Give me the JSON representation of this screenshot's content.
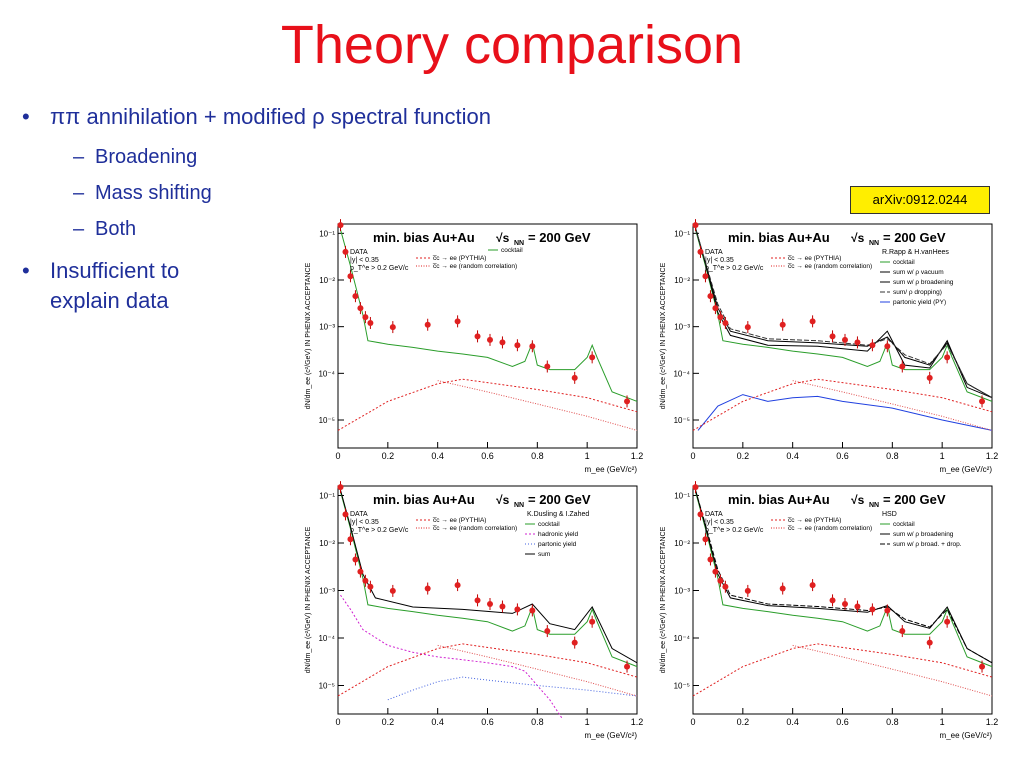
{
  "title": "Theory comparison",
  "bullets": [
    {
      "text": "ππ annihilation + modified ρ spectral function",
      "subitems": [
        "Broadening",
        "Mass shifting",
        "Both"
      ]
    },
    {
      "text_lines": [
        "Insufficient to",
        "explain data"
      ]
    }
  ],
  "arxiv_label": "arXiv:0912.0244",
  "colors": {
    "title": "#e8101a",
    "text": "#1f2f9a",
    "arxiv_bg": "#ffee00"
  },
  "common_plot": {
    "header": "min. bias Au+Au",
    "energy": "= 200 GeV",
    "ylabel": "dN/dm_ee (c²/GeV) IN PHENIX ACCEPTANCE",
    "xlabel": "m_ee (GeV/c²)",
    "x_ticks": [
      "0",
      "0.2",
      "0.4",
      "0.6",
      "0.8",
      "1",
      "1.2"
    ],
    "y_ticks": [
      "10⁻¹",
      "10⁻²",
      "10⁻³",
      "10⁻⁴",
      "10⁻⁵"
    ],
    "cuts": [
      "DATA",
      "|y| < 0.35",
      "p_T^e > 0.2 GeV/c"
    ],
    "charm_labels": [
      "c̅c → ee (PYTHIA)",
      "c̅c → ee (random correlation)"
    ]
  },
  "chart_data": [
    {
      "type": "scatter",
      "title": "min. bias Au+Au = 200 GeV",
      "xlabel": "m_ee (GeV/c²)",
      "ylabel": "dN/dm_ee (c²/GeV) IN PHENIX ACCEPTANCE",
      "xlim": [
        0,
        1.2
      ],
      "ylim_log10": [
        -5.6,
        -0.8
      ],
      "legend": [
        "DATA",
        "cocktail",
        "c̅c → ee (PYTHIA)",
        "c̅c → ee (random correlation)"
      ],
      "author": "",
      "series": [
        {
          "name": "DATA",
          "x": [
            0.01,
            0.03,
            0.05,
            0.07,
            0.09,
            0.11,
            0.13,
            0.22,
            0.36,
            0.48,
            0.56,
            0.61,
            0.66,
            0.72,
            0.78,
            0.84,
            0.95,
            1.02,
            1.16
          ],
          "y": [
            0.15,
            0.04,
            0.012,
            0.0045,
            0.0025,
            0.0016,
            0.0012,
            0.00098,
            0.0011,
            0.0013,
            0.00062,
            0.00052,
            0.00046,
            0.0004,
            0.00038,
            0.00014,
            8e-05,
            0.00022,
            2.5e-05
          ]
        },
        {
          "name": "cocktail",
          "x": [
            0.01,
            0.05,
            0.1,
            0.12,
            0.2,
            0.3,
            0.4,
            0.5,
            0.6,
            0.7,
            0.75,
            0.78,
            0.8,
            0.85,
            0.95,
            1.0,
            1.02,
            1.04,
            1.1,
            1.2
          ],
          "y": [
            0.12,
            0.02,
            0.0018,
            0.0005,
            0.00042,
            0.00036,
            0.0003,
            0.00026,
            0.00022,
            0.00014,
            0.00018,
            0.00045,
            0.00015,
            0.00012,
            0.00012,
            0.00022,
            0.0004,
            0.00022,
            4e-05,
            2.5e-05
          ]
        },
        {
          "name": "c̅c → ee (PYTHIA)",
          "x": [
            0,
            0.2,
            0.4,
            0.5,
            0.8,
            1.0,
            1.2
          ],
          "y": [
            6e-06,
            2.5e-05,
            6e-05,
            7.5e-05,
            4.5e-05,
            3e-05,
            1.5e-05
          ]
        },
        {
          "name": "c̅c → ee (random correlation)",
          "x": [
            0.4,
            0.6,
            0.8,
            1.0,
            1.2
          ],
          "y": [
            7e-05,
            4e-05,
            2.2e-05,
            1.2e-05,
            6e-06
          ]
        }
      ]
    },
    {
      "type": "scatter",
      "title": "min. bias Au+Au = 200 GeV",
      "xlabel": "m_ee (GeV/c²)",
      "ylabel": "dN/dm_ee (c²/GeV) IN PHENIX ACCEPTANCE",
      "xlim": [
        0,
        1.2
      ],
      "ylim_log10": [
        -5.6,
        -0.8
      ],
      "author": "R.Rapp & H.vanHees",
      "legend": [
        "DATA",
        "cocktail",
        "sum w/ ρ vacuum",
        "sum w/ ρ broadening",
        "sum/ ρ dropping)",
        "partonic yield (PY)",
        "c̅c → ee (PYTHIA)",
        "c̅c → ee (random correlation)"
      ],
      "series": [
        {
          "name": "DATA",
          "x": [
            0.01,
            0.03,
            0.05,
            0.07,
            0.09,
            0.11,
            0.13,
            0.22,
            0.36,
            0.48,
            0.56,
            0.61,
            0.66,
            0.72,
            0.78,
            0.84,
            0.95,
            1.02,
            1.16
          ],
          "y": [
            0.15,
            0.04,
            0.012,
            0.0045,
            0.0025,
            0.0016,
            0.0012,
            0.00098,
            0.0011,
            0.0013,
            0.00062,
            0.00052,
            0.00046,
            0.0004,
            0.00038,
            0.00014,
            8e-05,
            0.00022,
            2.5e-05
          ]
        },
        {
          "name": "cocktail",
          "x": [
            0.01,
            0.05,
            0.1,
            0.12,
            0.2,
            0.3,
            0.4,
            0.5,
            0.6,
            0.7,
            0.75,
            0.78,
            0.8,
            0.85,
            0.95,
            1.0,
            1.02,
            1.04,
            1.1,
            1.2
          ],
          "y": [
            0.12,
            0.02,
            0.0018,
            0.0005,
            0.00042,
            0.00036,
            0.0003,
            0.00026,
            0.00022,
            0.00014,
            0.00018,
            0.00045,
            0.00015,
            0.00012,
            0.00012,
            0.00022,
            0.0004,
            0.00022,
            4e-05,
            2.5e-05
          ]
        },
        {
          "name": "sum w/ ρ vacuum",
          "x": [
            0.01,
            0.05,
            0.1,
            0.15,
            0.3,
            0.5,
            0.7,
            0.78,
            0.85,
            0.95,
            1.02,
            1.1,
            1.2
          ],
          "y": [
            0.13,
            0.022,
            0.002,
            0.00065,
            0.0004,
            0.00038,
            0.0003,
            0.0008,
            0.00015,
            0.00013,
            0.0005,
            5e-05,
            3e-05
          ]
        },
        {
          "name": "sum w/ ρ broadening",
          "x": [
            0.01,
            0.05,
            0.1,
            0.15,
            0.3,
            0.5,
            0.7,
            0.78,
            0.85,
            0.95,
            1.02,
            1.1,
            1.2
          ],
          "y": [
            0.13,
            0.023,
            0.0025,
            0.0008,
            0.0005,
            0.00045,
            0.00038,
            0.0006,
            0.00022,
            0.00015,
            0.00045,
            6e-05,
            3e-05
          ]
        },
        {
          "name": "sum/ ρ dropping)",
          "x": [
            0.01,
            0.05,
            0.1,
            0.15,
            0.3,
            0.5,
            0.7,
            0.78,
            0.85,
            0.95,
            1.02,
            1.1,
            1.2
          ],
          "y": [
            0.13,
            0.024,
            0.003,
            0.0009,
            0.00055,
            0.0005,
            0.0004,
            0.00055,
            0.00025,
            0.00016,
            0.00042,
            6e-05,
            3e-05
          ]
        },
        {
          "name": "partonic yield (PY)",
          "x": [
            0.02,
            0.1,
            0.2,
            0.3,
            0.4,
            0.5,
            0.6,
            0.8,
            1.0,
            1.2
          ],
          "y": [
            6e-06,
            2e-05,
            3.5e-05,
            2.5e-05,
            3e-05,
            3.2e-05,
            2.5e-05,
            1.8e-05,
            1e-05,
            6e-06
          ]
        },
        {
          "name": "c̅c → ee (PYTHIA)",
          "x": [
            0,
            0.2,
            0.4,
            0.5,
            0.8,
            1.0,
            1.2
          ],
          "y": [
            6e-06,
            2.5e-05,
            6e-05,
            7.5e-05,
            4.5e-05,
            3e-05,
            1.5e-05
          ]
        },
        {
          "name": "c̅c → ee (random correlation)",
          "x": [
            0.4,
            0.6,
            0.8,
            1.0,
            1.2
          ],
          "y": [
            7e-05,
            4e-05,
            2.2e-05,
            1.2e-05,
            6e-06
          ]
        }
      ]
    },
    {
      "type": "scatter",
      "title": "min. bias Au+Au = 200 GeV",
      "xlabel": "m_ee (GeV/c²)",
      "ylabel": "dN/dm_ee (c²/GeV) IN PHENIX ACCEPTANCE",
      "xlim": [
        0,
        1.2
      ],
      "ylim_log10": [
        -5.6,
        -0.8
      ],
      "author": "K.Dusling & I.Zahed",
      "legend": [
        "DATA",
        "cocktail",
        "hadronic yield",
        "partonic yield",
        "sum",
        "c̅c → ee (PYTHIA)",
        "c̅c → ee (random correlation)"
      ],
      "series": [
        {
          "name": "DATA",
          "x": [
            0.01,
            0.03,
            0.05,
            0.07,
            0.09,
            0.11,
            0.13,
            0.22,
            0.36,
            0.48,
            0.56,
            0.61,
            0.66,
            0.72,
            0.78,
            0.84,
            0.95,
            1.02,
            1.16
          ],
          "y": [
            0.15,
            0.04,
            0.012,
            0.0045,
            0.0025,
            0.0016,
            0.0012,
            0.00098,
            0.0011,
            0.0013,
            0.00062,
            0.00052,
            0.00046,
            0.0004,
            0.00038,
            0.00014,
            8e-05,
            0.00022,
            2.5e-05
          ]
        },
        {
          "name": "cocktail",
          "x": [
            0.01,
            0.05,
            0.1,
            0.12,
            0.2,
            0.3,
            0.4,
            0.5,
            0.6,
            0.7,
            0.75,
            0.78,
            0.8,
            0.85,
            0.95,
            1.0,
            1.02,
            1.04,
            1.1,
            1.2
          ],
          "y": [
            0.12,
            0.02,
            0.0018,
            0.0005,
            0.00042,
            0.00036,
            0.0003,
            0.00026,
            0.00022,
            0.00014,
            0.00018,
            0.00045,
            0.00015,
            0.00012,
            0.00012,
            0.00022,
            0.0004,
            0.00022,
            4e-05,
            2.5e-05
          ]
        },
        {
          "name": "hadronic yield",
          "x": [
            0.01,
            0.05,
            0.1,
            0.2,
            0.3,
            0.4,
            0.5,
            0.6,
            0.7,
            0.75,
            0.8,
            0.85,
            0.9
          ],
          "y": [
            0.0008,
            0.0004,
            0.00015,
            7e-05,
            5e-05,
            4e-05,
            3.5e-05,
            3e-05,
            2.5e-05,
            2e-05,
            1e-05,
            5e-06,
            2e-06
          ]
        },
        {
          "name": "partonic yield",
          "x": [
            0.2,
            0.3,
            0.4,
            0.5,
            0.6,
            0.8,
            1.0,
            1.2
          ],
          "y": [
            5e-06,
            8e-06,
            1.2e-05,
            1.5e-05,
            1.3e-05,
            1e-05,
            8e-06,
            6e-06
          ]
        },
        {
          "name": "sum",
          "x": [
            0.01,
            0.05,
            0.1,
            0.15,
            0.3,
            0.5,
            0.7,
            0.78,
            0.85,
            0.95,
            1.02,
            1.1,
            1.2
          ],
          "y": [
            0.13,
            0.022,
            0.0022,
            0.0007,
            0.00045,
            0.0004,
            0.00033,
            0.00052,
            0.0002,
            0.00015,
            0.00045,
            6e-05,
            3e-05
          ]
        },
        {
          "name": "c̅c → ee (PYTHIA)",
          "x": [
            0,
            0.2,
            0.4,
            0.5,
            0.8,
            1.0,
            1.2
          ],
          "y": [
            6e-06,
            2.5e-05,
            6e-05,
            7.5e-05,
            4.5e-05,
            3e-05,
            1.5e-05
          ]
        },
        {
          "name": "c̅c → ee (random correlation)",
          "x": [
            0.4,
            0.6,
            0.8,
            1.0,
            1.2
          ],
          "y": [
            7e-05,
            4e-05,
            2.2e-05,
            1.2e-05,
            6e-06
          ]
        }
      ]
    },
    {
      "type": "scatter",
      "title": "min. bias Au+Au = 200 GeV",
      "xlabel": "m_ee (GeV/c²)",
      "ylabel": "dN/dm_ee (c²/GeV) IN PHENIX ACCEPTANCE",
      "xlim": [
        0,
        1.2
      ],
      "ylim_log10": [
        -5.6,
        -0.8
      ],
      "author": "HSD",
      "legend": [
        "DATA",
        "cocktail",
        "sum w/ ρ broadening",
        "sum w/ ρ broad. + drop.",
        "c̅c → ee (PYTHIA)",
        "c̅c → ee (random correlation)"
      ],
      "series": [
        {
          "name": "DATA",
          "x": [
            0.01,
            0.03,
            0.05,
            0.07,
            0.09,
            0.11,
            0.13,
            0.22,
            0.36,
            0.48,
            0.56,
            0.61,
            0.66,
            0.72,
            0.78,
            0.84,
            0.95,
            1.02,
            1.16
          ],
          "y": [
            0.15,
            0.04,
            0.012,
            0.0045,
            0.0025,
            0.0016,
            0.0012,
            0.00098,
            0.0011,
            0.0013,
            0.00062,
            0.00052,
            0.00046,
            0.0004,
            0.00038,
            0.00014,
            8e-05,
            0.00022,
            2.5e-05
          ]
        },
        {
          "name": "cocktail",
          "x": [
            0.01,
            0.05,
            0.1,
            0.12,
            0.2,
            0.3,
            0.4,
            0.5,
            0.6,
            0.7,
            0.75,
            0.78,
            0.8,
            0.85,
            0.95,
            1.0,
            1.02,
            1.04,
            1.1,
            1.2
          ],
          "y": [
            0.12,
            0.02,
            0.0018,
            0.0005,
            0.00042,
            0.00036,
            0.0003,
            0.00026,
            0.00022,
            0.00014,
            0.00018,
            0.00045,
            0.00015,
            0.00012,
            0.00012,
            0.00022,
            0.0004,
            0.00022,
            4e-05,
            2.5e-05
          ]
        },
        {
          "name": "sum w/ ρ broadening",
          "x": [
            0.01,
            0.05,
            0.1,
            0.15,
            0.3,
            0.5,
            0.7,
            0.78,
            0.85,
            0.95,
            1.02,
            1.1,
            1.2
          ],
          "y": [
            0.13,
            0.022,
            0.0022,
            0.0007,
            0.00048,
            0.00042,
            0.00035,
            0.00048,
            0.00022,
            0.00016,
            0.00045,
            6e-05,
            3e-05
          ]
        },
        {
          "name": "sum w/ ρ broad. + drop.",
          "x": [
            0.01,
            0.05,
            0.1,
            0.15,
            0.3,
            0.5,
            0.7,
            0.78,
            0.85,
            0.95,
            1.02,
            1.1,
            1.2
          ],
          "y": [
            0.13,
            0.024,
            0.0027,
            0.0008,
            0.00052,
            0.00046,
            0.00038,
            0.00045,
            0.00025,
            0.00017,
            0.0004,
            6e-05,
            3e-05
          ]
        },
        {
          "name": "c̅c → ee (PYTHIA)",
          "x": [
            0,
            0.2,
            0.4,
            0.5,
            0.8,
            1.0,
            1.2
          ],
          "y": [
            6e-06,
            2.5e-05,
            6e-05,
            7.5e-05,
            4.5e-05,
            3e-05,
            1.5e-05
          ]
        },
        {
          "name": "c̅c → ee (random correlation)",
          "x": [
            0.4,
            0.6,
            0.8,
            1.0,
            1.2
          ],
          "y": [
            7e-05,
            4e-05,
            2.2e-05,
            1.2e-05,
            6e-06
          ]
        }
      ]
    }
  ],
  "series_colors": {
    "DATA": "#e02020",
    "cocktail": "#2a9d2a",
    "c̅c → ee (PYTHIA)": "#e02020",
    "c̅c → ee (random correlation)": "#e05050",
    "sum w/ ρ vacuum": "#000000",
    "sum w/ ρ broadening": "#000000",
    "sum/ ρ dropping)": "#333333",
    "partonic yield (PY)": "#2040e0",
    "hadronic yield": "#d020d0",
    "partonic yield": "#4060e0",
    "sum": "#000000",
    "sum w/ ρ broad. + drop.": "#000000"
  }
}
